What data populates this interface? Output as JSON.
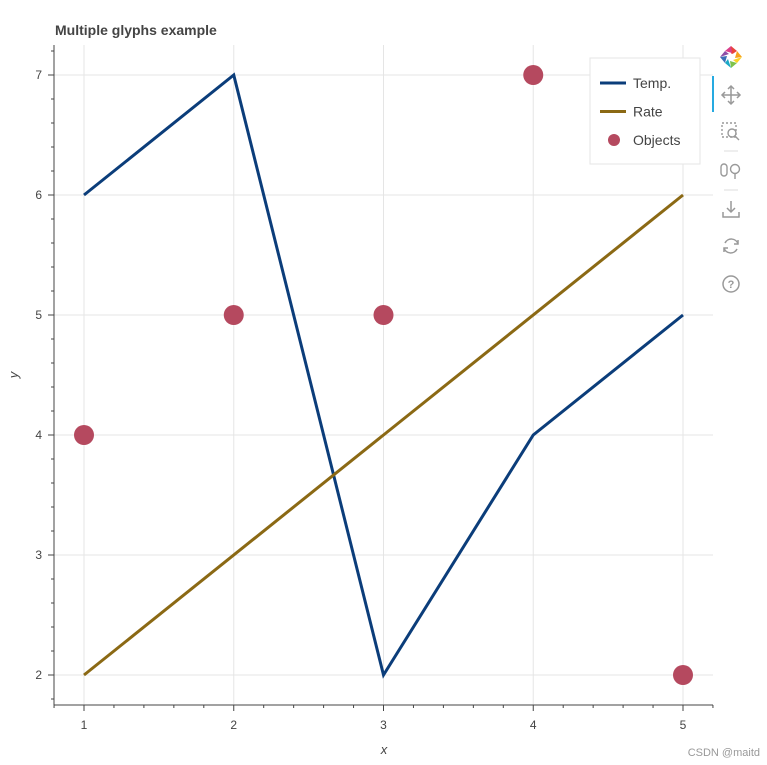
{
  "chart_data": {
    "type": "line",
    "title": "Multiple glyphs example",
    "xlabel": "x",
    "ylabel": "y",
    "xlim": [
      0.8,
      5.2
    ],
    "ylim": [
      1.75,
      7.25
    ],
    "xticks": [
      1,
      2,
      3,
      4,
      5
    ],
    "yticks": [
      2,
      3,
      4,
      5,
      6,
      7
    ],
    "grid": true,
    "legend_position": "top-right",
    "series": [
      {
        "name": "Temp.",
        "kind": "line",
        "color": "#0b3d7a",
        "x": [
          1,
          2,
          3,
          4,
          5
        ],
        "y": [
          6,
          7,
          2,
          4,
          5
        ]
      },
      {
        "name": "Rate",
        "kind": "line",
        "color": "#8b6914",
        "x": [
          1,
          5
        ],
        "y": [
          2,
          6
        ]
      },
      {
        "name": "Objects",
        "kind": "scatter",
        "color": "#b5495f",
        "x": [
          1,
          2,
          3,
          4,
          5
        ],
        "y": [
          4,
          5,
          5,
          7,
          2
        ]
      }
    ]
  },
  "toolbar": {
    "tools": [
      {
        "name": "bokeh-logo-icon"
      },
      {
        "name": "pan-icon"
      },
      {
        "name": "box-zoom-icon"
      },
      {
        "name": "wheel-zoom-icon"
      },
      {
        "name": "save-icon"
      },
      {
        "name": "reset-icon"
      },
      {
        "name": "help-icon"
      }
    ]
  },
  "watermark": {
    "text": "CSDN @maitd"
  }
}
